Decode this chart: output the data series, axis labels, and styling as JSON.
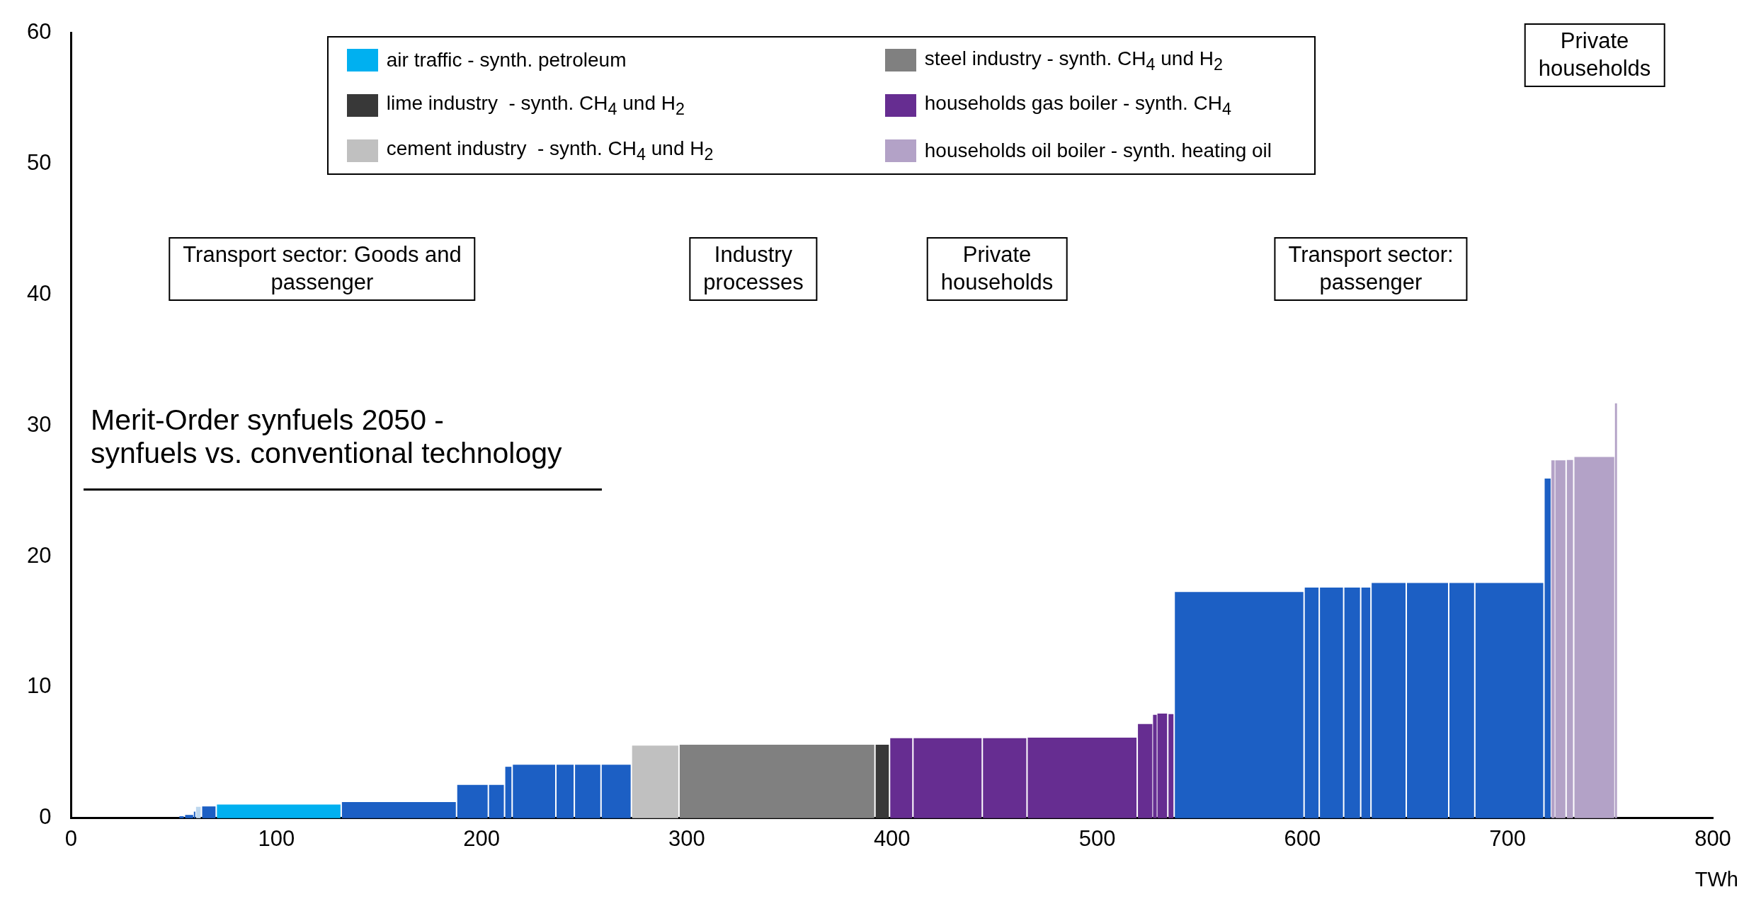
{
  "chart_data": {
    "type": "histogram",
    "title": "Merit-Order synfuels 2050 -\nsynfuels vs. conventional technology",
    "xlabel": "TWh",
    "bins": [
      52.4,
      55.2,
      59.8,
      60.5,
      63.5,
      70.7,
      131.6,
      187.8,
      203.3,
      211.2,
      214.9,
      236.2,
      245.2,
      258.2,
      273,
      296.2,
      391.7,
      398.8,
      410.2,
      444,
      465.8,
      519.5,
      527.2,
      529,
      534.4,
      537.5,
      600.8,
      608.2,
      620.1,
      628.4,
      633.4,
      650.6,
      671.3,
      684,
      717.7,
      721.3,
      722.9,
      728.5,
      732.2,
      752.3,
      753.3
    ],
    "series": [
      {
        "name": "air traffic - synth. petroleum",
        "color": "#00b0f0",
        "values": [
          null,
          null,
          null,
          null,
          null,
          1.05,
          null,
          null,
          null,
          null,
          null,
          null,
          null,
          null,
          null,
          null,
          null,
          null,
          null,
          null,
          null,
          null,
          null,
          null,
          null,
          null,
          null,
          null,
          null,
          null,
          null,
          null,
          null,
          null,
          null,
          null,
          null,
          null,
          null,
          null
        ]
      },
      {
        "name": "steel industry - synth. CH$_{4}$ und H$_{2}$",
        "color": "#808080",
        "values": [
          null,
          null,
          null,
          null,
          null,
          null,
          null,
          null,
          null,
          null,
          null,
          null,
          null,
          null,
          null,
          5.62,
          null,
          null,
          null,
          null,
          null,
          null,
          null,
          null,
          null,
          null,
          null,
          null,
          null,
          null,
          null,
          null,
          null,
          null,
          null,
          null,
          null,
          null,
          null,
          null
        ]
      },
      {
        "name": "lime industry  - synth. CH$_{4}$ und H$_{2}$",
        "color": "#383838",
        "values": [
          null,
          null,
          null,
          null,
          null,
          null,
          null,
          null,
          null,
          null,
          null,
          null,
          null,
          null,
          null,
          null,
          5.62,
          null,
          null,
          null,
          null,
          null,
          null,
          null,
          null,
          null,
          null,
          null,
          null,
          null,
          null,
          null,
          null,
          null,
          null,
          null,
          null,
          null,
          null,
          null
        ]
      },
      {
        "name": "households gas boiler - synth. CH$_{4}$",
        "color": "#662d91",
        "values": [
          null,
          null,
          null,
          null,
          null,
          null,
          null,
          null,
          null,
          null,
          null,
          null,
          null,
          null,
          null,
          null,
          null,
          6.12,
          6.12,
          6.12,
          6.15,
          7.2,
          7.9,
          8.0,
          7.96,
          null,
          null,
          null,
          null,
          null,
          null,
          null,
          null,
          null,
          null,
          null,
          null,
          null,
          null,
          null
        ]
      },
      {
        "name": "cement industry  - synth. CH$_{4}$ und H$_{2}$",
        "color": "#c0c0c0",
        "values": [
          null,
          null,
          null,
          null,
          null,
          null,
          null,
          null,
          null,
          null,
          null,
          null,
          null,
          null,
          5.55,
          null,
          null,
          null,
          null,
          null,
          null,
          null,
          null,
          null,
          null,
          null,
          null,
          null,
          null,
          null,
          null,
          null,
          null,
          null,
          null,
          null,
          null,
          null,
          null,
          null
        ]
      },
      {
        "name": "households oil boiler - synth. heating oil",
        "color": "#b3a2c7",
        "values": [
          null,
          null,
          null,
          null,
          null,
          null,
          null,
          null,
          null,
          null,
          null,
          null,
          null,
          null,
          null,
          null,
          null,
          null,
          null,
          null,
          null,
          null,
          null,
          null,
          null,
          null,
          null,
          null,
          null,
          null,
          null,
          null,
          null,
          null,
          null,
          27.35,
          27.35,
          27.38,
          27.6,
          31.7
        ]
      },
      {
        "color": "#1c5fc4",
        "values": [
          0.15,
          0.25,
          0.5,
          null,
          0.9,
          null,
          1.23,
          2.55,
          2.55,
          3.93,
          4.08,
          4.08,
          4.08,
          4.08,
          null,
          null,
          null,
          null,
          null,
          null,
          null,
          null,
          null,
          null,
          null,
          17.28,
          17.62,
          17.62,
          17.62,
          17.62,
          17.98,
          17.98,
          17.98,
          17.98,
          25.95,
          null,
          null,
          null,
          null,
          null
        ]
      },
      {
        "color": "#bdd7ee",
        "values": [
          null,
          null,
          null,
          0.87,
          null,
          null,
          null,
          null,
          null,
          null,
          null,
          null,
          null,
          null,
          null,
          null,
          null,
          null,
          null,
          null,
          null,
          null,
          null,
          null,
          null,
          null,
          null,
          null,
          null,
          null,
          null,
          null,
          null,
          null,
          null,
          null,
          null,
          null,
          null,
          null
        ]
      }
    ],
    "annotations": [
      "Transport sector: Goods and\npassenger",
      "Industry\nprocesses",
      "Private\nhouseholds",
      "Transport sector:\npassenger",
      "Private\nhouseholds"
    ],
    "xlim": [
      0,
      800
    ],
    "xticks": [
      0,
      100,
      200,
      300,
      400,
      500,
      600,
      700,
      800
    ],
    "ylim": [
      0,
      60
    ],
    "yticks": [
      0,
      10,
      20,
      30,
      40,
      50,
      60
    ],
    "grid": false,
    "legend": "top"
  }
}
